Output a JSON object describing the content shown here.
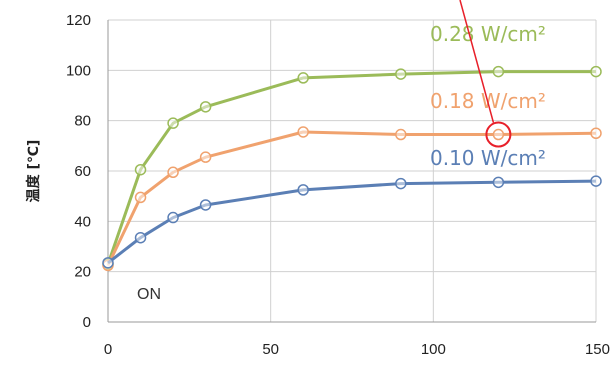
{
  "chart_data": {
    "type": "line",
    "xlabel": "",
    "ylabel": "温度 [℃]",
    "xlim": [
      0,
      150
    ],
    "ylim": [
      0,
      120
    ],
    "x_ticks": [
      0,
      50,
      100,
      150
    ],
    "y_ticks": [
      0,
      20,
      40,
      60,
      80,
      100,
      120
    ],
    "grid": true,
    "series": [
      {
        "name": "0.28 W/cm²",
        "color": "#9bbb59",
        "points": [
          [
            0,
            23
          ],
          [
            10,
            60.5
          ],
          [
            20,
            79
          ],
          [
            30,
            85.5
          ],
          [
            60,
            97
          ],
          [
            90,
            98.5
          ],
          [
            120,
            99.5
          ],
          [
            150,
            99.5
          ]
        ]
      },
      {
        "name": "0.18 W/cm²",
        "color": "#f0a26e",
        "points": [
          [
            0,
            22.5
          ],
          [
            10,
            49.5
          ],
          [
            20,
            59.5
          ],
          [
            30,
            65.5
          ],
          [
            60,
            75.5
          ],
          [
            90,
            74.5
          ],
          [
            120,
            74.5
          ],
          [
            150,
            75
          ]
        ]
      },
      {
        "name": "0.10 W/cm²",
        "color": "#5b7fb5",
        "points": [
          [
            0,
            23.5
          ],
          [
            10,
            33.5
          ],
          [
            20,
            41.5
          ],
          [
            30,
            46.5
          ],
          [
            60,
            52.5
          ],
          [
            90,
            55
          ],
          [
            120,
            55.5
          ],
          [
            150,
            56
          ]
        ]
      }
    ],
    "annotations": {
      "on_label": "ON",
      "highlight": {
        "x": 120,
        "y": 74.5,
        "color": "#e8202a"
      }
    }
  }
}
